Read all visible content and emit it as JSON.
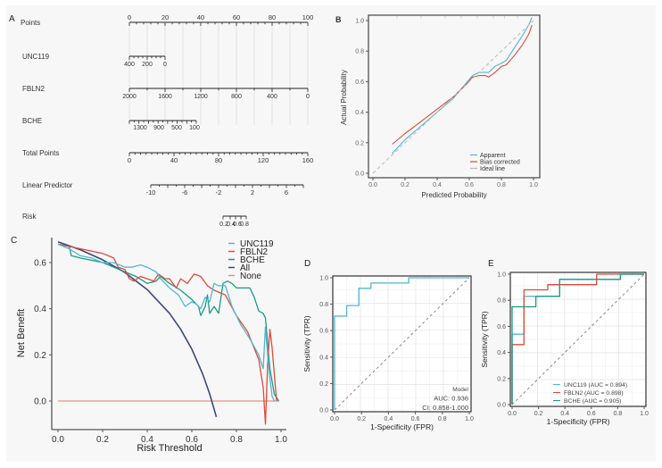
{
  "colors": {
    "unc119": "#4fb6d4",
    "fbln2": "#e0493a",
    "bche": "#1a9a86",
    "all": "#3a4a7a",
    "none": "#f0917c",
    "ideal": "#b8b8b8",
    "axis": "#555555",
    "grid": "#e2e2e2"
  },
  "chart_data": [
    {
      "panel": "A",
      "type": "nomogram",
      "rows": [
        {
          "label": "Points",
          "ticks": [
            "0",
            "20",
            "40",
            "60",
            "80",
            "100"
          ],
          "range": [
            0,
            100
          ]
        },
        {
          "label": "UNC119",
          "ticks": [
            "400",
            "200",
            "0"
          ],
          "points_range": [
            0,
            20
          ]
        },
        {
          "label": "FBLN2",
          "ticks": [
            "2000",
            "1600",
            "1200",
            "800",
            "400",
            "0"
          ],
          "points_range": [
            0,
            100
          ]
        },
        {
          "label": "BCHE",
          "ticks": [
            "1300",
            "900",
            "500",
            "100"
          ],
          "points_range": [
            0,
            37
          ]
        },
        {
          "label": "Total Points",
          "ticks": [
            "0",
            "40",
            "80",
            "120",
            "160"
          ],
          "range": [
            0,
            160
          ]
        },
        {
          "label": "Linear Predictor",
          "ticks": [
            "-10",
            "-6",
            "-2",
            "2",
            "6"
          ],
          "range": [
            -10,
            8
          ]
        },
        {
          "label": "Risk",
          "ticks": [
            "0.2",
            "0.4",
            "0.6",
            "0.8"
          ]
        }
      ]
    },
    {
      "panel": "B",
      "type": "line",
      "title": "",
      "xlabel": "Predicted Probability",
      "ylabel": "Actual Probability",
      "xlim": [
        0,
        1
      ],
      "ylim": [
        0,
        1
      ],
      "xticks": [
        "0.0",
        "0.2",
        "0.4",
        "0.6",
        "0.8",
        "1.0"
      ],
      "yticks": [
        "0.0",
        "0.2",
        "0.4",
        "0.6",
        "0.8",
        "1.0"
      ],
      "legend_position": "bottom-right",
      "series": [
        {
          "name": "Apparent",
          "color_key": "unc119",
          "x": [
            0.12,
            0.2,
            0.3,
            0.4,
            0.5,
            0.58,
            0.62,
            0.66,
            0.7,
            0.72,
            0.76,
            0.8,
            0.83,
            0.88,
            0.93,
            0.97,
            0.99
          ],
          "y": [
            0.13,
            0.22,
            0.31,
            0.4,
            0.49,
            0.59,
            0.64,
            0.66,
            0.66,
            0.66,
            0.7,
            0.72,
            0.74,
            0.82,
            0.9,
            0.97,
            1.02
          ]
        },
        {
          "name": "Bias corrected",
          "color_key": "fbln2",
          "x": [
            0.12,
            0.2,
            0.3,
            0.4,
            0.5,
            0.58,
            0.62,
            0.66,
            0.7,
            0.72,
            0.76,
            0.8,
            0.83,
            0.88,
            0.93,
            0.97,
            0.99
          ],
          "y": [
            0.19,
            0.26,
            0.34,
            0.42,
            0.5,
            0.58,
            0.63,
            0.64,
            0.64,
            0.63,
            0.66,
            0.7,
            0.71,
            0.77,
            0.84,
            0.91,
            0.97
          ]
        },
        {
          "name": "Ideal line",
          "color_key": "ideal",
          "dashed": true,
          "x": [
            0,
            1
          ],
          "y": [
            0,
            1
          ]
        }
      ]
    },
    {
      "panel": "C",
      "type": "line",
      "xlabel": "Risk Threshold",
      "ylabel": "Net Benefit",
      "xlim": [
        0,
        1
      ],
      "ylim": [
        -0.1,
        0.7
      ],
      "xticks": [
        "0.0",
        "0.2",
        "0.4",
        "0.6",
        "0.8",
        "1.0"
      ],
      "yticks": [
        "0.0",
        "0.2",
        "0.4",
        "0.6"
      ],
      "legend_position": "top-right",
      "series": [
        {
          "name": "UNC119",
          "color_key": "unc119",
          "x": [
            0,
            0.05,
            0.1,
            0.15,
            0.2,
            0.25,
            0.3,
            0.33,
            0.37,
            0.4,
            0.44,
            0.46,
            0.5,
            0.54,
            0.57,
            0.6,
            0.62,
            0.64,
            0.66,
            0.68,
            0.7,
            0.72,
            0.75,
            0.78,
            0.82,
            0.86,
            0.9,
            0.92,
            0.93,
            0.94,
            0.95,
            0.96,
            0.97
          ],
          "y": [
            0.68,
            0.66,
            0.63,
            0.62,
            0.6,
            0.6,
            0.58,
            0.58,
            0.59,
            0.58,
            0.56,
            0.53,
            0.49,
            0.46,
            0.41,
            0.43,
            0.42,
            0.4,
            0.45,
            0.43,
            0.51,
            0.5,
            0.5,
            0.41,
            0.33,
            0.27,
            0.2,
            0.14,
            0.32,
            0.2,
            0.1,
            0.02,
            0.0
          ]
        },
        {
          "name": "FBLN2",
          "color_key": "fbln2",
          "x": [
            0,
            0.05,
            0.1,
            0.15,
            0.2,
            0.25,
            0.27,
            0.3,
            0.32,
            0.34,
            0.37,
            0.4,
            0.43,
            0.45,
            0.48,
            0.5,
            0.53,
            0.55,
            0.58,
            0.61,
            0.64,
            0.67,
            0.7,
            0.75,
            0.8,
            0.85,
            0.9,
            0.92,
            0.93,
            0.94,
            0.95,
            0.96,
            0.98
          ],
          "y": [
            0.68,
            0.67,
            0.66,
            0.65,
            0.64,
            0.62,
            0.58,
            0.57,
            0.53,
            0.52,
            0.54,
            0.53,
            0.52,
            0.55,
            0.53,
            0.53,
            0.49,
            0.53,
            0.51,
            0.55,
            0.54,
            0.5,
            0.48,
            0.46,
            0.37,
            0.3,
            0.18,
            0.06,
            -0.1,
            0.16,
            0.31,
            0.23,
            0.0
          ]
        },
        {
          "name": "BCHE",
          "color_key": "bche",
          "x": [
            0,
            0.05,
            0.06,
            0.1,
            0.15,
            0.2,
            0.25,
            0.3,
            0.35,
            0.4,
            0.44,
            0.46,
            0.5,
            0.55,
            0.6,
            0.63,
            0.64,
            0.66,
            0.67,
            0.68,
            0.7,
            0.72,
            0.74,
            0.76,
            0.78,
            0.8,
            0.86,
            0.88,
            0.9,
            0.92,
            0.93,
            0.95,
            0.97,
            0.99
          ],
          "y": [
            0.68,
            0.67,
            0.63,
            0.62,
            0.61,
            0.6,
            0.58,
            0.56,
            0.54,
            0.51,
            0.52,
            0.54,
            0.51,
            0.48,
            0.44,
            0.41,
            0.37,
            0.41,
            0.46,
            0.38,
            0.41,
            0.38,
            0.51,
            0.52,
            0.51,
            0.49,
            0.49,
            0.45,
            0.39,
            0.38,
            0.36,
            0.14,
            0.03,
            0.0
          ]
        },
        {
          "name": "All",
          "color_key": "all",
          "formula": "0.69 - (1-0.69)*t/(1-t)",
          "x": [
            0,
            0.1,
            0.2,
            0.3,
            0.4,
            0.5,
            0.55,
            0.6,
            0.65,
            0.68,
            0.71
          ],
          "y": [
            0.69,
            0.656,
            0.612,
            0.557,
            0.483,
            0.38,
            0.311,
            0.225,
            0.114,
            0.031,
            -0.069
          ]
        },
        {
          "name": "None",
          "color_key": "none",
          "x": [
            0,
            0.99
          ],
          "y": [
            0,
            0
          ]
        }
      ]
    },
    {
      "panel": "D",
      "type": "line",
      "subtype": "roc-step",
      "xlabel": "1-Specificity (FPR)",
      "ylabel": "Sensitivity (TPR)",
      "xlim": [
        0,
        1
      ],
      "ylim": [
        0,
        1
      ],
      "xticks": [
        "0.0",
        "0.2",
        "0.4",
        "0.6",
        "0.8",
        "1.0"
      ],
      "yticks": [
        "0.0",
        "0.2",
        "0.4",
        "0.6",
        "0.8",
        "1.0"
      ],
      "annotation": [
        "Model",
        "AUC: 0.936",
        "CI: 0.858-1.000"
      ],
      "series": [
        {
          "name": "Model",
          "color_key": "unc119",
          "x": [
            0,
            0,
            0.09,
            0.09,
            0.18,
            0.18,
            0.27,
            0.27,
            0.55,
            0.55,
            1.0
          ],
          "y": [
            0,
            0.71,
            0.71,
            0.79,
            0.79,
            0.92,
            0.92,
            0.96,
            0.96,
            1.0,
            1.0
          ]
        }
      ]
    },
    {
      "panel": "E",
      "type": "line",
      "subtype": "roc-step",
      "xlabel": "1-Specificity (FPR)",
      "ylabel": "Sensitivity (TPR)",
      "xlim": [
        0,
        1
      ],
      "ylim": [
        0,
        1
      ],
      "xticks": [
        "0.0",
        "0.2",
        "0.4",
        "0.6",
        "0.8",
        "1.0"
      ],
      "yticks": [
        "0.0",
        "0.2",
        "0.4",
        "0.6",
        "0.8",
        "1.0"
      ],
      "legend_position": "bottom-right",
      "series": [
        {
          "name": "UNC119 (AUC = 0.894)",
          "color_key": "unc119",
          "x": [
            0,
            0,
            0.09,
            0.09,
            0.18,
            0.18,
            0.36,
            0.36,
            0.82,
            0.82,
            1.0
          ],
          "y": [
            0,
            0.54,
            0.54,
            0.83,
            0.83,
            0.83,
            0.83,
            0.96,
            0.96,
            1.0,
            1.0
          ]
        },
        {
          "name": "FBLN2 (AUC = 0.898)",
          "color_key": "fbln2",
          "x": [
            0,
            0,
            0.09,
            0.09,
            0.27,
            0.27,
            0.64,
            0.64,
            1.0
          ],
          "y": [
            0,
            0.46,
            0.46,
            0.88,
            0.88,
            0.92,
            0.92,
            1.0,
            1.0
          ]
        },
        {
          "name": "BCHE (AUC = 0.905)",
          "color_key": "bche",
          "x": [
            0,
            0,
            0.18,
            0.18,
            0.36,
            0.36,
            0.82,
            0.82,
            1.0
          ],
          "y": [
            0,
            0.75,
            0.75,
            0.83,
            0.83,
            0.96,
            0.96,
            1.0,
            1.0
          ]
        }
      ]
    }
  ],
  "panel_labels": {
    "a": "A",
    "b": "B",
    "c": "C",
    "d": "D",
    "e": "E"
  }
}
